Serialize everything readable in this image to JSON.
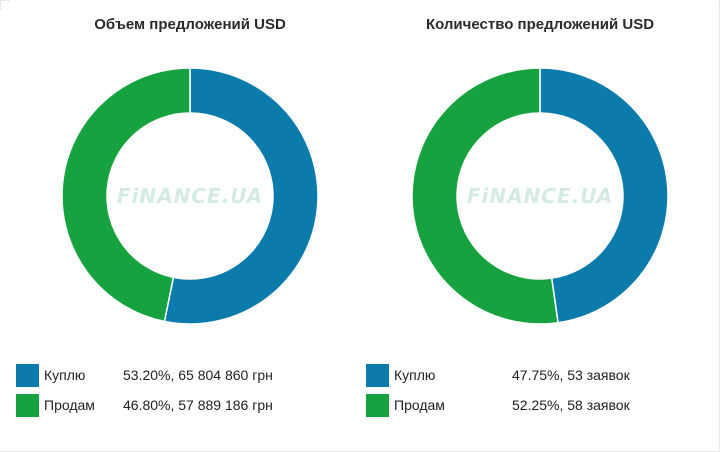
{
  "colors": {
    "buy": "#0a7bab",
    "sell": "#16a33f"
  },
  "watermark": "FiNANCE.UA",
  "chart_data": [
    {
      "type": "pie",
      "title": "Объем предложений USD",
      "categories": [
        "Куплю",
        "Продам"
      ],
      "values": [
        53.2,
        46.8
      ],
      "unit": "%",
      "legend_values": [
        "53.20%, 65 804 860 грн",
        "46.80%, 57 889 186 грн"
      ],
      "amounts_uah": [
        65804860,
        57889186
      ],
      "legend_position": "bottom"
    },
    {
      "type": "pie",
      "title": "Количество предложений USD",
      "categories": [
        "Куплю",
        "Продам"
      ],
      "values": [
        47.75,
        52.25
      ],
      "unit": "%",
      "legend_values": [
        "47.75%, 53 заявок",
        "52.25%, 58 заявок"
      ],
      "counts": [
        53,
        58
      ],
      "legend_position": "bottom"
    }
  ]
}
